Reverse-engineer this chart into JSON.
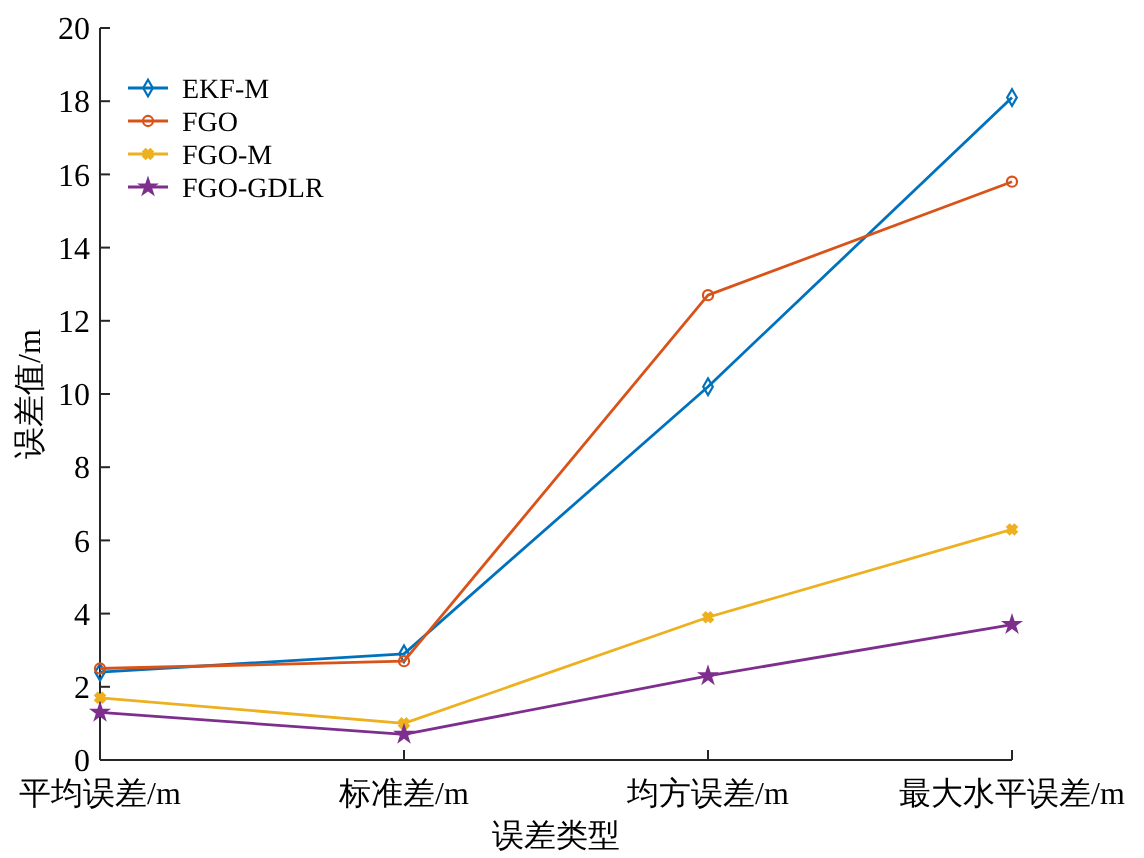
{
  "chart_data": {
    "type": "line",
    "xlabel": "误差类型",
    "ylabel": "误差值/m",
    "categories": [
      "平均误差/m",
      "标准差/m",
      "均方误差/m",
      "最大水平误差/m"
    ],
    "series": [
      {
        "name": "EKF-M",
        "color": "#0072bd",
        "marker": "diamond",
        "values": [
          2.4,
          2.9,
          10.2,
          18.1
        ]
      },
      {
        "name": "FGO",
        "color": "#d95319",
        "marker": "circle",
        "values": [
          2.5,
          2.7,
          12.7,
          15.8
        ]
      },
      {
        "name": "FGO-M",
        "color": "#edb120",
        "marker": "cross",
        "values": [
          1.7,
          1.0,
          3.9,
          6.3
        ]
      },
      {
        "name": "FGO-GDLR",
        "color": "#7e2f8e",
        "marker": "star",
        "values": [
          1.3,
          0.7,
          2.3,
          3.7
        ]
      }
    ],
    "ylim": [
      0,
      20
    ],
    "yticks": [
      0,
      2,
      4,
      6,
      8,
      10,
      12,
      14,
      16,
      18,
      20
    ],
    "grid": false,
    "legend": "top left"
  }
}
